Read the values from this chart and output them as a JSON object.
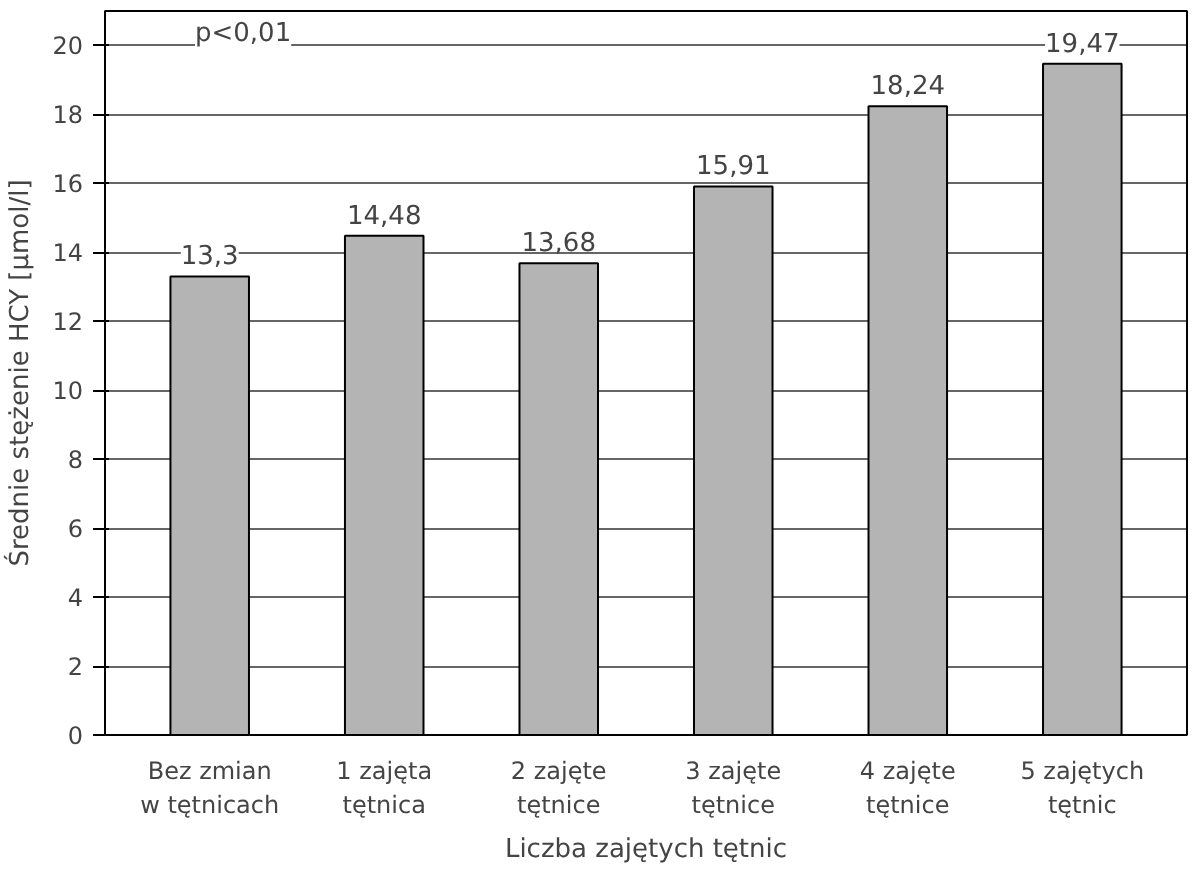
{
  "chart_data": {
    "type": "bar",
    "categories": [
      "Bez zmian\nw tętnicach",
      "1 zajęta\ntętnica",
      "2 zajęte\ntętnice",
      "3 zajęte\ntętnice",
      "4 zajęte\ntętnice",
      "5 zajętych\ntętnic"
    ],
    "values": [
      13.3,
      14.48,
      13.68,
      15.91,
      18.24,
      19.47
    ],
    "value_labels": [
      "13,3",
      "14,48",
      "13,68",
      "15,91",
      "18,24",
      "19,47"
    ],
    "color": "#b4b4b4",
    "xlabel": "Liczba zajętych tętnic",
    "ylabel": "Średnie stężenie HCY [µmol/l]",
    "annotations": [
      "p<0,01"
    ],
    "ylim": [
      0,
      21
    ],
    "yticks": [
      0,
      2,
      4,
      6,
      8,
      10,
      12,
      14,
      16,
      18,
      20
    ],
    "grid": "y"
  }
}
